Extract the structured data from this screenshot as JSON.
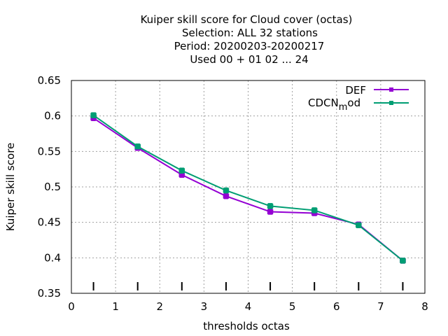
{
  "chart_data": {
    "type": "line",
    "title_lines": [
      "Kuiper skill score  for Cloud cover (octas)",
      "Selection: ALL     32 stations",
      "Period: 20200203-20200217",
      "Used  00 + 01 02 ... 24"
    ],
    "xlabel": "thresholds octas",
    "ylabel": "Kuiper skill score",
    "xlim": [
      0,
      8
    ],
    "ylim": [
      0.35,
      0.65
    ],
    "x_ticks": [
      "0",
      "1",
      "2",
      "3",
      "4",
      "5",
      "6",
      "7",
      "8"
    ],
    "y_ticks": [
      "0.35",
      "0.4",
      "0.45",
      "0.5",
      "0.55",
      "0.6",
      "0.65"
    ],
    "grid": true,
    "legend_position": "top-right",
    "x": [
      0.5,
      1.5,
      2.5,
      3.5,
      4.5,
      5.5,
      6.5,
      7.5
    ],
    "series": [
      {
        "name": "DEF",
        "color": "#9400d3",
        "values": [
          0.597,
          0.555,
          0.517,
          0.487,
          0.465,
          0.463,
          0.447,
          0.396
        ]
      },
      {
        "name": "CDCN",
        "name_subscript": "m",
        "name_suffix": "od",
        "color": "#009e73",
        "values": [
          0.601,
          0.557,
          0.523,
          0.495,
          0.473,
          0.467,
          0.446,
          0.396
        ]
      }
    ]
  }
}
